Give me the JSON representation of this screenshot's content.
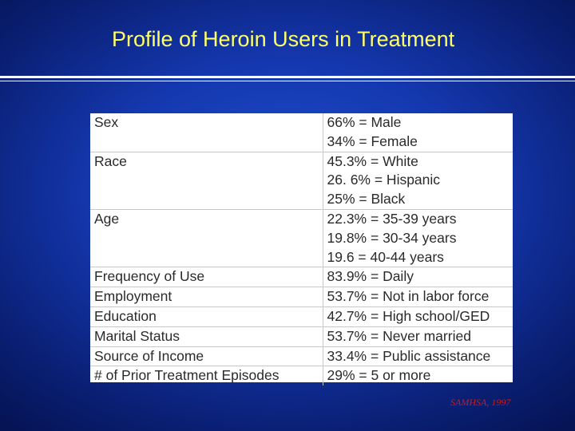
{
  "slide": {
    "title": "Profile of Heroin Users in Treatment",
    "source": "SAMHSA, 1997"
  },
  "table": {
    "rows": [
      {
        "label": "Sex",
        "values": [
          "66% = Male",
          "34% = Female"
        ]
      },
      {
        "label": "Race",
        "values": [
          "45.3% = White",
          "26. 6% = Hispanic",
          "25% = Black"
        ]
      },
      {
        "label": "Age",
        "values": [
          "22.3% = 35-39 years",
          "19.8% = 30-34 years",
          "19.6 = 40-44 years"
        ]
      },
      {
        "label": "Frequency of Use",
        "values": [
          "83.9% = Daily"
        ]
      },
      {
        "label": "Employment",
        "values": [
          "53.7% = Not in labor force"
        ]
      },
      {
        "label": "Education",
        "values": [
          "42.7% = High school/GED"
        ]
      },
      {
        "label": "Marital Status",
        "values": [
          "53.7% = Never married"
        ]
      },
      {
        "label": "Source of Income",
        "values": [
          "33.4% = Public assistance"
        ]
      },
      {
        "label": "# of Prior Treatment Episodes",
        "values": [
          "29% = 5 or more"
        ]
      }
    ]
  },
  "colors": {
    "title": "#ffff66",
    "source": "#cc1a1a",
    "background": "#1437ad"
  }
}
